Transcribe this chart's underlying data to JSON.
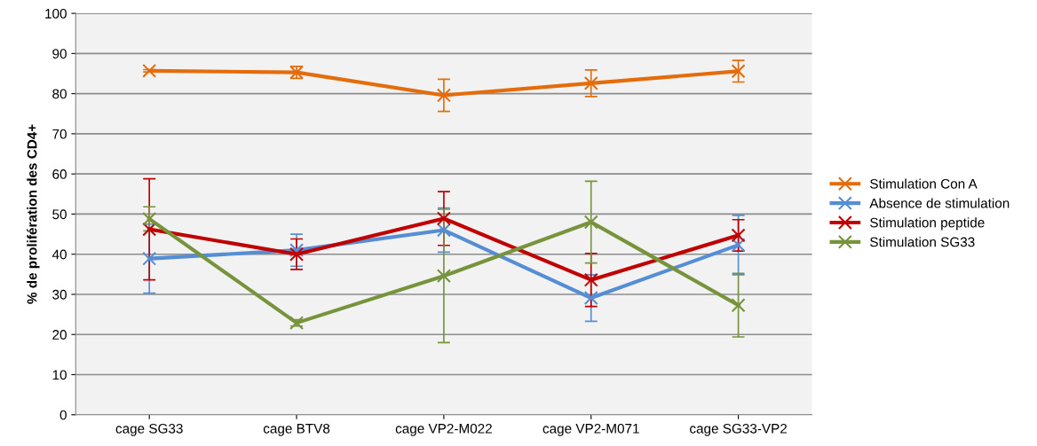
{
  "chart_data": {
    "type": "line",
    "ylabel": "% de prolifération des CD4+",
    "categories": [
      "cage SG33",
      "cage BTV8",
      "cage VP2-M022",
      "cage VP2-M071",
      "cage SG33-VP2"
    ],
    "ylim": [
      0,
      100
    ],
    "yticks": [
      0,
      10,
      20,
      30,
      40,
      50,
      60,
      70,
      80,
      90,
      100
    ],
    "grid": "y",
    "legend": "right",
    "marker": "cross",
    "line_style": "solid",
    "series": [
      {
        "name": "Stimulation Con A",
        "color": "#e46c0a",
        "values": [
          85.7,
          85.3,
          79.6,
          82.6,
          85.6
        ],
        "errors": [
          0.3,
          1.5,
          4,
          3.3,
          2.7
        ]
      },
      {
        "name": "Absence de stimulation",
        "color": "#558ed5",
        "values": [
          38.9,
          41,
          46,
          29.1,
          42.3
        ],
        "errors": [
          8.6,
          4,
          5.5,
          5.8,
          7.4
        ]
      },
      {
        "name": "Stimulation peptide",
        "color": "#c00000",
        "values": [
          46.2,
          40,
          48.9,
          33.6,
          44.7
        ],
        "errors": [
          12.6,
          3.8,
          6.7,
          6.6,
          3.9
        ]
      },
      {
        "name": "Stimulation SG33",
        "color": "#77933c",
        "values": [
          48.8,
          22.9,
          34.6,
          48,
          27.3
        ],
        "errors": [
          3,
          0.8,
          16.6,
          10.2,
          7.9
        ]
      }
    ]
  }
}
